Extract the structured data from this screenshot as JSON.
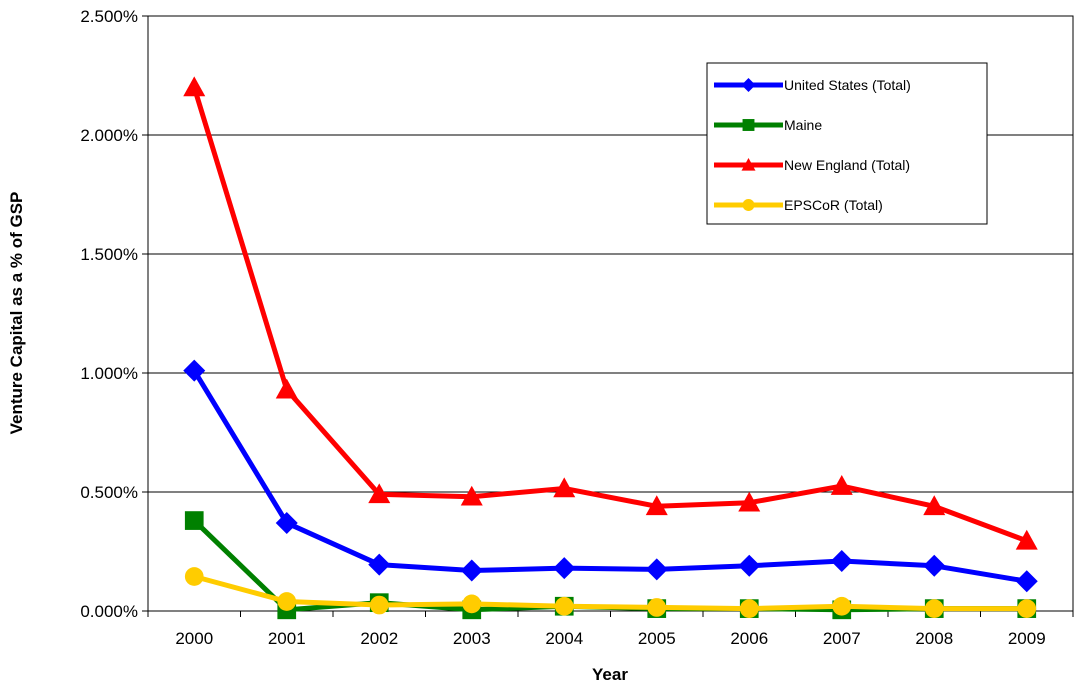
{
  "chart_data": {
    "type": "line",
    "xlabel": "Year",
    "ylabel": "Venture Capital as a % of GSP",
    "categories": [
      "2000",
      "2001",
      "2002",
      "2003",
      "2004",
      "2005",
      "2006",
      "2007",
      "2008",
      "2009"
    ],
    "ylim": [
      0,
      2.5
    ],
    "yticks": [
      "0.000%",
      "0.500%",
      "1.000%",
      "1.500%",
      "2.000%",
      "2.500%"
    ],
    "grid": true,
    "legend_position": "top-right",
    "series": [
      {
        "name": "United States (Total)",
        "color": "#0000ff",
        "marker": "diamond",
        "values": [
          1.01,
          0.37,
          0.195,
          0.17,
          0.18,
          0.175,
          0.19,
          0.21,
          0.19,
          0.125
        ]
      },
      {
        "name": "Maine",
        "color": "#008000",
        "marker": "square",
        "values": [
          0.38,
          0.005,
          0.035,
          0.005,
          0.02,
          0.01,
          0.01,
          0.005,
          0.01,
          0.01
        ]
      },
      {
        "name": "New England (Total)",
        "color": "#ff0000",
        "marker": "triangle",
        "values": [
          2.2,
          0.93,
          0.49,
          0.48,
          0.515,
          0.44,
          0.455,
          0.525,
          0.44,
          0.295
        ]
      },
      {
        "name": "EPSCoR (Total)",
        "color": "#ffcc00",
        "marker": "circle",
        "values": [
          0.145,
          0.04,
          0.025,
          0.03,
          0.02,
          0.015,
          0.01,
          0.02,
          0.01,
          0.01
        ]
      }
    ]
  }
}
